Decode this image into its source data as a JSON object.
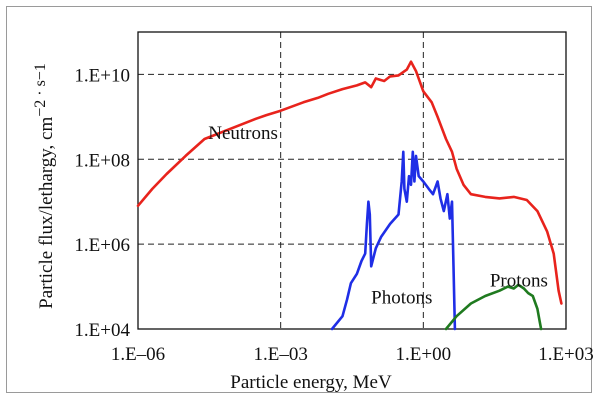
{
  "chart_data": {
    "type": "line",
    "title": "",
    "xlabel": "Particle energy, MeV",
    "ylabel": "Particle flux/lethargy, cm",
    "ylabel_unit": "−2 · s−1",
    "x_scale": "log",
    "y_scale": "log",
    "xlim": [
      1e-06,
      1000
    ],
    "ylim": [
      10000,
      100000000000.0
    ],
    "grid": true,
    "legend": "none",
    "x_ticks": [
      {
        "value": 1e-06,
        "label": "1.E–06"
      },
      {
        "value": 0.001,
        "label": "1.E–03"
      },
      {
        "value": 1,
        "label": "1.E+00"
      },
      {
        "value": 1000,
        "label": "1.E+03"
      }
    ],
    "y_ticks": [
      {
        "value": 10000,
        "label": "1.E+04"
      },
      {
        "value": 1000000.0,
        "label": "1.E+06"
      },
      {
        "value": 100000000.0,
        "label": "1.E+08"
      },
      {
        "value": 10000000000.0,
        "label": "1.E+10"
      }
    ],
    "annotations": [
      {
        "text": "Neutrons",
        "x": 3e-05,
        "y": 300000000.0
      },
      {
        "text": "Photons",
        "x": 0.08,
        "y": 40000.0
      },
      {
        "text": "Protons",
        "x": 25,
        "y": 100000.0
      }
    ],
    "series": [
      {
        "name": "Neutrons",
        "color": "#e8231c",
        "points": [
          [
            1e-06,
            8000000.0
          ],
          [
            2e-06,
            20000000.0
          ],
          [
            4e-06,
            45000000.0
          ],
          [
            1e-05,
            120000000.0
          ],
          [
            2.5e-05,
            300000000.0
          ],
          [
            0.0003,
            900000000.0
          ],
          [
            0.0005,
            1100000000.0
          ],
          [
            0.001,
            1400000000.0
          ],
          [
            0.003,
            2200000000.0
          ],
          [
            0.006,
            2800000000.0
          ],
          [
            0.01,
            3500000000.0
          ],
          [
            0.02,
            4500000000.0
          ],
          [
            0.04,
            5500000000.0
          ],
          [
            0.06,
            6500000000.0
          ],
          [
            0.08,
            5000000000.0
          ],
          [
            0.1,
            8000000000.0
          ],
          [
            0.15,
            7000000000.0
          ],
          [
            0.2,
            9000000000.0
          ],
          [
            0.3,
            9500000000.0
          ],
          [
            0.45,
            13000000000.0
          ],
          [
            0.55,
            20000000000.0
          ],
          [
            0.7,
            12000000000.0
          ],
          [
            1,
            4000000000.0
          ],
          [
            1.5,
            2200000000.0
          ],
          [
            2,
            1000000000.0
          ],
          [
            3,
            300000000.0
          ],
          [
            4,
            150000000.0
          ],
          [
            5,
            60000000.0
          ],
          [
            7,
            25000000.0
          ],
          [
            10,
            15000000.0
          ],
          [
            20,
            13000000.0
          ],
          [
            40,
            12000000.0
          ],
          [
            80,
            13000000.0
          ],
          [
            150,
            11000000.0
          ],
          [
            250,
            6000000.0
          ],
          [
            400,
            2000000.0
          ],
          [
            550,
            600000.0
          ],
          [
            700,
            80000.0
          ],
          [
            800,
            40000.0
          ]
        ]
      },
      {
        "name": "Photons",
        "color": "#1f2ee6",
        "points": [
          [
            0.012,
            10000.0
          ],
          [
            0.02,
            20000.0
          ],
          [
            0.025,
            50000.0
          ],
          [
            0.03,
            120000.0
          ],
          [
            0.04,
            200000.0
          ],
          [
            0.05,
            400000.0
          ],
          [
            0.06,
            600000.0
          ],
          [
            0.065,
            3000000.0
          ],
          [
            0.07,
            10000000.0
          ],
          [
            0.075,
            5000000.0
          ],
          [
            0.08,
            300000.0
          ],
          [
            0.1,
            800000.0
          ],
          [
            0.13,
            1500000.0
          ],
          [
            0.2,
            3000000.0
          ],
          [
            0.3,
            5000000.0
          ],
          [
            0.35,
            30000000.0
          ],
          [
            0.38,
            150000000.0
          ],
          [
            0.4,
            20000000.0
          ],
          [
            0.45,
            10000000.0
          ],
          [
            0.5,
            40000000.0
          ],
          [
            0.55,
            25000000.0
          ],
          [
            0.6,
            150000000.0
          ],
          [
            0.65,
            30000000.0
          ],
          [
            0.7,
            120000000.0
          ],
          [
            0.8,
            40000000.0
          ],
          [
            1,
            30000000.0
          ],
          [
            1.3,
            20000000.0
          ],
          [
            1.6,
            15000000.0
          ],
          [
            2,
            30000000.0
          ],
          [
            2.3,
            12000000.0
          ],
          [
            2.7,
            6000000.0
          ],
          [
            3.2,
            15000000.0
          ],
          [
            3.6,
            4000000.0
          ],
          [
            4,
            10000000.0
          ],
          [
            4.3,
            300000.0
          ],
          [
            4.6,
            10000.0
          ]
        ]
      },
      {
        "name": "Protons",
        "color": "#1f7a1f",
        "points": [
          [
            3,
            10000.0
          ],
          [
            5,
            20000.0
          ],
          [
            10,
            40000.0
          ],
          [
            20,
            60000.0
          ],
          [
            40,
            80000.0
          ],
          [
            60,
            100000.0
          ],
          [
            80,
            90000.0
          ],
          [
            100,
            110000.0
          ],
          [
            130,
            90000.0
          ],
          [
            160,
            70000.0
          ],
          [
            200,
            60000.0
          ],
          [
            250,
            30000.0
          ],
          [
            280,
            15000.0
          ],
          [
            300,
            10000.0
          ]
        ]
      }
    ]
  }
}
